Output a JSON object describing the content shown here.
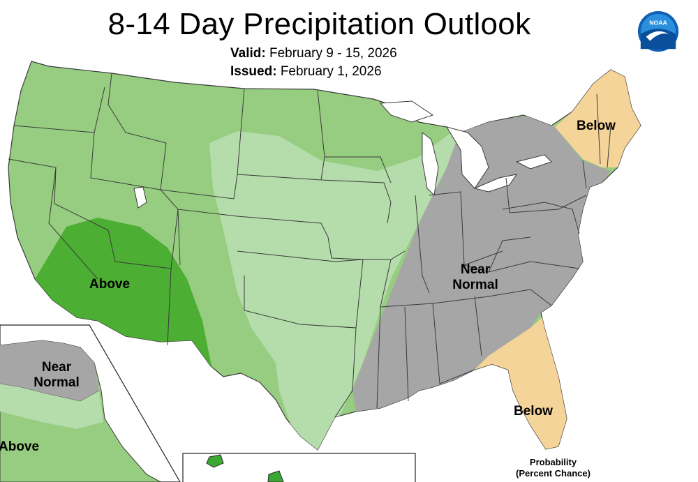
{
  "title": "8-14 Day Precipitation Outlook",
  "valid_label": "Valid:",
  "valid_value": "February 9 - 15, 2026",
  "issued_label": "Issued:",
  "issued_value": "February 1, 2026",
  "logo_text": "NOAA",
  "labels": {
    "above_southwest": "Above",
    "near_normal_east_line1": "Near",
    "near_normal_east_line2": "Normal",
    "below_northeast": "Below",
    "below_southeast": "Below",
    "alaska_near_normal_line1": "Near",
    "alaska_near_normal_line2": "Normal",
    "alaska_above": "Above"
  },
  "probability_caption_line1": "Probability",
  "probability_caption_line2": "(Percent Chance)",
  "categories": {
    "above_strong": "#4cae32",
    "above": "#97cd80",
    "above_weak": "#b5dcab",
    "near_normal": "#a6a6a6",
    "below": "#f5d49a",
    "water": "#ffffff",
    "state_line": "#3a3a3a"
  }
}
